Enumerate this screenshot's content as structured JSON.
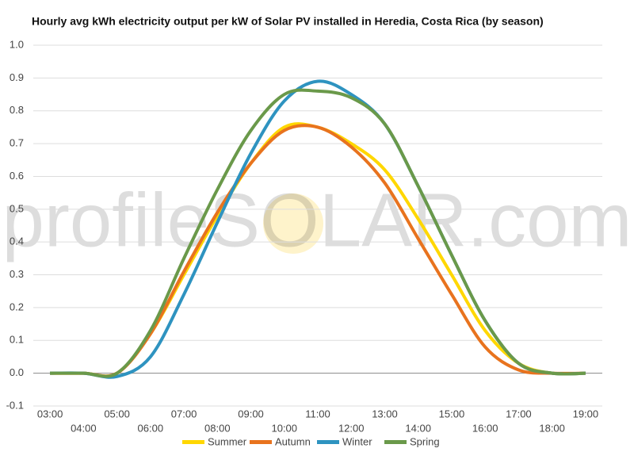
{
  "chart_data": {
    "type": "line",
    "title": "Hourly avg kWh electricity output per kW of Solar PV installed in Heredia, Costa Rica (by season)",
    "watermark": "profileSOLAR.com",
    "categories": [
      "03:00",
      "04:00",
      "05:00",
      "06:00",
      "07:00",
      "08:00",
      "09:00",
      "10:00",
      "11:00",
      "12:00",
      "13:00",
      "14:00",
      "15:00",
      "16:00",
      "17:00",
      "18:00",
      "19:00"
    ],
    "series": [
      {
        "name": "Summer",
        "color": "#ffd700",
        "values": [
          0,
          0,
          0,
          0.12,
          0.3,
          0.48,
          0.64,
          0.75,
          0.75,
          0.7,
          0.62,
          0.47,
          0.3,
          0.13,
          0.03,
          0,
          0
        ]
      },
      {
        "name": "Autumn",
        "color": "#e8731e",
        "values": [
          0,
          0,
          0,
          0.12,
          0.31,
          0.49,
          0.64,
          0.74,
          0.75,
          0.69,
          0.58,
          0.41,
          0.24,
          0.08,
          0.01,
          0,
          0
        ]
      },
      {
        "name": "Winter",
        "color": "#2e93c0",
        "values": [
          0,
          0,
          -0.01,
          0.05,
          0.24,
          0.46,
          0.67,
          0.83,
          0.89,
          0.85,
          0.76,
          0.57,
          0.36,
          0.16,
          0.03,
          0,
          0
        ]
      },
      {
        "name": "Spring",
        "color": "#6a994a",
        "values": [
          0,
          0,
          0,
          0.13,
          0.35,
          0.56,
          0.74,
          0.85,
          0.86,
          0.84,
          0.76,
          0.57,
          0.36,
          0.16,
          0.03,
          0,
          0
        ]
      }
    ],
    "ylim": [
      -0.1,
      1.0
    ],
    "yticks": [
      {
        "value": -0.1,
        "label": "-0.1"
      },
      {
        "value": 0,
        "label": "0.0"
      },
      0.1,
      0.2,
      0.3,
      0.4,
      0.5,
      0.6,
      0.7,
      0.8,
      0.9,
      {
        "value": 1,
        "label": "1.0"
      }
    ],
    "grid": true,
    "legend": "bottom"
  }
}
